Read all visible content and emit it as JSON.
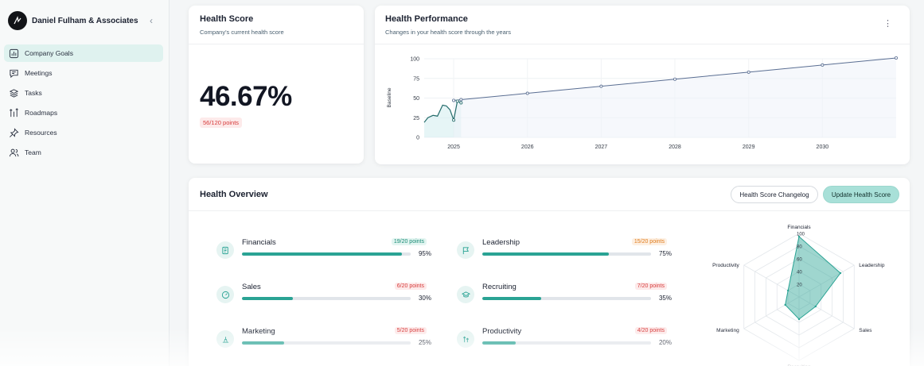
{
  "sidebar": {
    "org_name": "Daniel Fulham & Associates",
    "collapse_icon": "chevron-left-icon",
    "items": [
      {
        "label": "Company Goals",
        "icon": "bar-chart-icon",
        "active": true
      },
      {
        "label": "Meetings",
        "icon": "chat-icon",
        "active": false
      },
      {
        "label": "Tasks",
        "icon": "layers-icon",
        "active": false
      },
      {
        "label": "Roadmaps",
        "icon": "roadmap-icon",
        "active": false
      },
      {
        "label": "Resources",
        "icon": "pin-icon",
        "active": false
      },
      {
        "label": "Team",
        "icon": "users-icon",
        "active": false
      }
    ]
  },
  "health_score": {
    "title": "Health Score",
    "subtitle": "Company's current health score",
    "value": "46.67%",
    "points": "56/120 points"
  },
  "performance": {
    "title": "Health Performance",
    "subtitle": "Changes in your health score through the years",
    "menu_icon": "kebab-icon"
  },
  "overview": {
    "title": "Health Overview",
    "changelog_button": "Health Score Changelog",
    "update_button": "Update Health Score",
    "categories": [
      {
        "name": "Financials",
        "points": "19/20 points",
        "percent": "95%",
        "fraction": 0.95,
        "status": "good",
        "icon": "ledger-icon"
      },
      {
        "name": "Leadership",
        "points": "15/20 points",
        "percent": "75%",
        "fraction": 0.75,
        "status": "mid",
        "icon": "flag-icon"
      },
      {
        "name": "Sales",
        "points": "6/20 points",
        "percent": "30%",
        "fraction": 0.3,
        "status": "bad",
        "icon": "gauge-icon"
      },
      {
        "name": "Recruiting",
        "points": "7/20 points",
        "percent": "35%",
        "fraction": 0.35,
        "status": "bad",
        "icon": "graduation-icon"
      },
      {
        "name": "Marketing",
        "points": "5/20 points",
        "percent": "25%",
        "fraction": 0.25,
        "status": "bad",
        "icon": "megaphone-icon"
      },
      {
        "name": "Productivity",
        "points": "4/20 points",
        "percent": "20%",
        "fraction": 0.2,
        "status": "bad",
        "icon": "arrows-up-icon"
      }
    ]
  },
  "colors": {
    "accent": "#2aa394",
    "accent_light": "#a8e0d8",
    "line": "#5a6e92",
    "danger": "#d63a3a",
    "warning": "#e07a1a"
  },
  "chart_data": [
    {
      "type": "line",
      "title": "Health Performance",
      "ylabel": "Baseline",
      "xlabel": "",
      "ylim": [
        0,
        100
      ],
      "yticks": [
        0,
        25,
        50,
        75,
        100
      ],
      "xticks": [
        "2025",
        "2026",
        "2027",
        "2028",
        "2029",
        "2030"
      ],
      "grid": true,
      "series": [
        {
          "x": [
            2024.6,
            2024.65,
            2024.72,
            2024.78,
            2024.85,
            2024.9,
            2024.95,
            2025.0,
            2025.05,
            2025.1
          ],
          "y": [
            19,
            25,
            28,
            27,
            41,
            40,
            35,
            22,
            46,
            44
          ]
        },
        {
          "x": [
            2025.0,
            2025.1,
            2026.0,
            2027.0,
            2028.0,
            2029.0,
            2030.0,
            2031.0
          ],
          "y": [
            47,
            48,
            56,
            65,
            74,
            83,
            92,
            101
          ]
        }
      ]
    },
    {
      "type": "radar",
      "categories": [
        "Financials",
        "Leadership",
        "Sales",
        "Recruiting",
        "Marketing",
        "Productivity"
      ],
      "values": [
        95,
        75,
        30,
        35,
        25,
        20
      ],
      "ticks": [
        "100",
        "80",
        "60",
        "40",
        "20"
      ],
      "rlim": [
        0,
        100
      ]
    }
  ]
}
